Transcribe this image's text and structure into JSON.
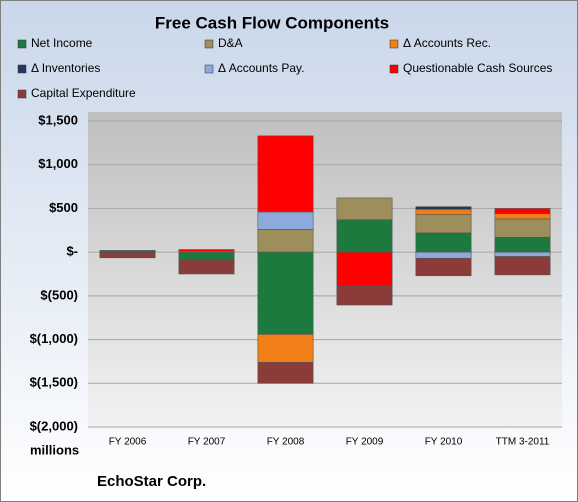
{
  "chart_data": {
    "type": "stacked_bar",
    "title": "Free Cash Flow Components",
    "y_axis_label": "millions",
    "source": "EchoStar Corp.",
    "categories": [
      "FY 2006",
      "FY 2007",
      "FY 2008",
      "FY 2009",
      "FY 2010",
      "TTM 3-2011"
    ],
    "series": [
      {
        "name": "Net Income",
        "color": "#1d7a3e",
        "values": [
          10,
          -90,
          -940,
          370,
          220,
          170
        ]
      },
      {
        "name": "D&A",
        "color": "#9e8e5c",
        "values": [
          5,
          10,
          260,
          250,
          210,
          210
        ]
      },
      {
        "name": "Δ Accounts Rec.",
        "color": "#f07f18",
        "values": [
          -5,
          0,
          -320,
          0,
          60,
          60
        ]
      },
      {
        "name": "Δ Inventories",
        "color": "#1f3a5f",
        "values": [
          0,
          0,
          0,
          0,
          30,
          0
        ]
      },
      {
        "name": "Δ Accounts Pay.",
        "color": "#8ea9db",
        "values": [
          5,
          0,
          200,
          0,
          -70,
          -50
        ]
      },
      {
        "name": "Questionable Cash Sources",
        "color": "#ff0000",
        "values": [
          0,
          20,
          870,
          -390,
          0,
          60
        ]
      },
      {
        "name": "Capital Expenditure",
        "color": "#8c3b3b",
        "values": [
          -60,
          -160,
          -240,
          -215,
          -200,
          -210
        ]
      }
    ],
    "ylim": [
      -2000,
      1500
    ],
    "yticks": [
      {
        "value": 1500,
        "label": "$1,500"
      },
      {
        "value": 1000,
        "label": "$1,000"
      },
      {
        "value": 500,
        "label": "$500"
      },
      {
        "value": 0,
        "label": "$-"
      },
      {
        "value": -500,
        "label": "$(500)"
      },
      {
        "value": -1000,
        "label": "$(1,000)"
      },
      {
        "value": -1500,
        "label": "$(1,500)"
      },
      {
        "value": -2000,
        "label": "$(2,000)"
      }
    ],
    "grid": true
  }
}
